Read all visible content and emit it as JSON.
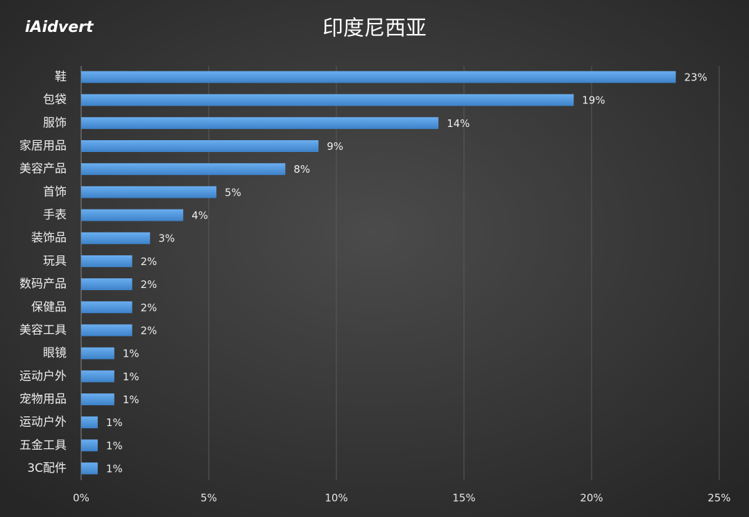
{
  "chart_data": {
    "type": "bar",
    "orientation": "horizontal",
    "title": "印度尼西亚",
    "logo": "iAidvert",
    "categories": [
      "鞋",
      "包袋",
      "服饰",
      "家居用品",
      "美容产品",
      "首饰",
      "手表",
      "装饰品",
      "玩具",
      "数码产品",
      "保健品",
      "美容工具",
      "眼镜",
      "运动户外",
      "宠物用品",
      "运动户外",
      "五金工具",
      "3C配件"
    ],
    "values": [
      23.3,
      19.3,
      14,
      9.3,
      8,
      5.3,
      4,
      2.7,
      2,
      2,
      2,
      2,
      1.3,
      1.3,
      1.3,
      0.65,
      0.65,
      0.65
    ],
    "value_labels": [
      "23%",
      "19%",
      "14%",
      "9%",
      "8%",
      "5%",
      "4%",
      "3%",
      "2%",
      "2%",
      "2%",
      "2%",
      "1%",
      "1%",
      "1%",
      "1%",
      "1%",
      "1%"
    ],
    "color": "#4d94dc",
    "xlim": [
      0,
      25
    ],
    "xticks": [
      {
        "value": 0,
        "label": "0%"
      },
      {
        "value": 5,
        "label": "5%"
      },
      {
        "value": 10,
        "label": "10%"
      },
      {
        "value": 15,
        "label": "15%"
      },
      {
        "value": 20,
        "label": "20%"
      },
      {
        "value": 25,
        "label": "25%"
      }
    ],
    "grid": true
  }
}
